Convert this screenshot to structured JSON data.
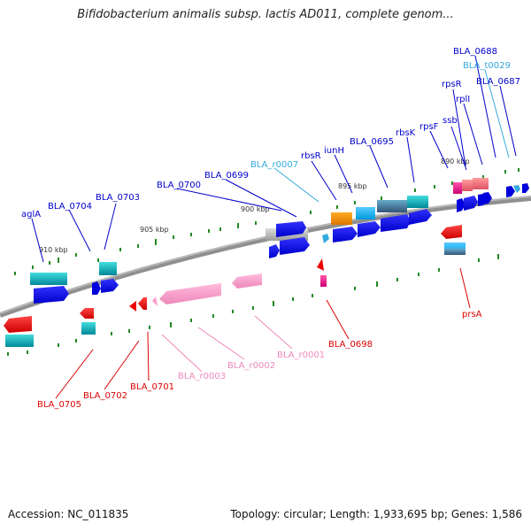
{
  "title": "Bifidobacterium animalis subsp. lactis AD011, complete genom...",
  "footer": {
    "accession": "Accession: NC_011835",
    "summary": "Topology: circular; Length: 1,933,695 bp; Genes: 1,586"
  },
  "scale_labels": [
    "910 kbp",
    "905 kbp",
    "900 kbp",
    "895 kbp",
    "890 kbp"
  ],
  "colors": {
    "backbone": "#808080",
    "gene_blue": "#0000ee",
    "gene_cyan": "#00bbcc",
    "gene_red": "#ee0000",
    "gene_pink": "#ff99cc",
    "gene_orange": "#ee8800",
    "tick_green": "#228822",
    "label_blue": "#0000cc",
    "label_lightblue": "#33aadd",
    "label_red": "#dd0000",
    "label_pink": "#ee88bb"
  },
  "gene_labels": [
    {
      "id": "aglA",
      "text": "aglA",
      "color": "#0000cc"
    },
    {
      "id": "BLA_0704",
      "text": "BLA_0704",
      "color": "#0000cc"
    },
    {
      "id": "BLA_0703",
      "text": "BLA_0703",
      "color": "#0000cc"
    },
    {
      "id": "BLA_0700",
      "text": "BLA_0700",
      "color": "#0000cc"
    },
    {
      "id": "BLA_0699",
      "text": "BLA_0699",
      "color": "#0000cc"
    },
    {
      "id": "BLA_r0007",
      "text": "BLA_r0007",
      "color": "#33aadd"
    },
    {
      "id": "rbsR",
      "text": "rbsR",
      "color": "#0000cc"
    },
    {
      "id": "iunH",
      "text": "iunH",
      "color": "#0000cc"
    },
    {
      "id": "BLA_0695",
      "text": "BLA_0695",
      "color": "#0000cc"
    },
    {
      "id": "rbsK",
      "text": "rbsK",
      "color": "#0000cc"
    },
    {
      "id": "rpsF",
      "text": "rpsF",
      "color": "#0000cc"
    },
    {
      "id": "ssb",
      "text": "ssb",
      "color": "#0000cc"
    },
    {
      "id": "rpsR",
      "text": "rpsR",
      "color": "#0000cc"
    },
    {
      "id": "rplI",
      "text": "rplI",
      "color": "#0000cc"
    },
    {
      "id": "BLA_0688",
      "text": "BLA_0688",
      "color": "#0000cc"
    },
    {
      "id": "BLA_t0029",
      "text": "BLA_t0029",
      "color": "#33aadd"
    },
    {
      "id": "BLA_0687",
      "text": "BLA_0687",
      "color": "#0000cc"
    },
    {
      "id": "BLA_0705",
      "text": "BLA_0705",
      "color": "#dd0000"
    },
    {
      "id": "BLA_0702",
      "text": "BLA_0702",
      "color": "#dd0000"
    },
    {
      "id": "BLA_0701",
      "text": "BLA_0701",
      "color": "#dd0000"
    },
    {
      "id": "BLA_r0003",
      "text": "BLA_r0003",
      "color": "#ee88bb"
    },
    {
      "id": "BLA_r0002",
      "text": "BLA_r0002",
      "color": "#ee88bb"
    },
    {
      "id": "BLA_r0001",
      "text": "BLA_r0001",
      "color": "#ee88bb"
    },
    {
      "id": "BLA_0698",
      "text": "BLA_0698",
      "color": "#dd0000"
    },
    {
      "id": "prsA",
      "text": "prsA",
      "color": "#dd0000"
    }
  ]
}
